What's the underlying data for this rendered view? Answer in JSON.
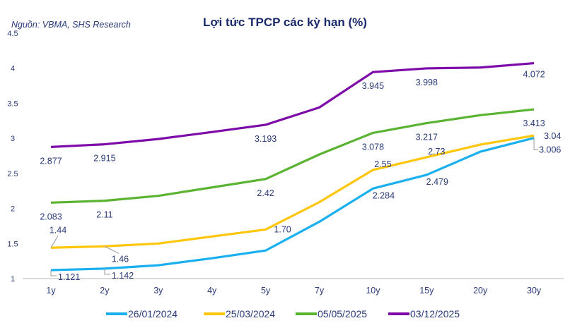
{
  "chart_data": {
    "type": "line",
    "title": "Lợi tức TPCP các kỳ hạn (%)",
    "source": "Nguồn: VBMA, SHS Research",
    "categories": [
      "1y",
      "2y",
      "3y",
      "4y",
      "5y",
      "7y",
      "10y",
      "15y",
      "20y",
      "30y"
    ],
    "ylim": [
      1,
      4.5
    ],
    "yticks": [
      "1",
      "1.5",
      "2",
      "2.5",
      "3",
      "3.5",
      "4",
      "4.5"
    ],
    "grid": false,
    "legend": "bottom",
    "series": [
      {
        "name": "26/01/2024",
        "color": "#1ab0f0",
        "values": [
          1.121,
          1.142,
          1.19,
          1.29,
          1.4,
          1.81,
          2.284,
          2.479,
          2.81,
          3.006
        ],
        "labels": [
          "1.121",
          "1.142",
          null,
          null,
          null,
          null,
          "2.284",
          "2.479",
          null,
          "3.006"
        ]
      },
      {
        "name": "25/03/2024",
        "color": "#ffc60b",
        "values": [
          1.44,
          1.46,
          1.5,
          1.6,
          1.7,
          2.09,
          2.55,
          2.73,
          2.91,
          3.04
        ],
        "labels": [
          "1.44",
          "1.46",
          null,
          null,
          "1.70",
          null,
          "2.55",
          "2.73",
          null,
          "3.04"
        ]
      },
      {
        "name": "05/05/2025",
        "color": "#5ab432",
        "values": [
          2.083,
          2.11,
          2.18,
          2.3,
          2.42,
          2.77,
          3.078,
          3.217,
          3.33,
          3.413
        ],
        "labels": [
          "2.083",
          "2.11",
          null,
          null,
          "2.42",
          null,
          "3.078",
          "3.217",
          null,
          "3.413"
        ]
      },
      {
        "name": "03/12/2025",
        "color": "#7d0aa8",
        "values": [
          2.877,
          2.915,
          2.99,
          3.09,
          3.193,
          3.44,
          3.945,
          3.998,
          4.01,
          4.072
        ],
        "labels": [
          "2.877",
          "2.915",
          null,
          null,
          "3.193",
          null,
          "3.945",
          "3.998",
          null,
          "4.072"
        ]
      }
    ]
  }
}
